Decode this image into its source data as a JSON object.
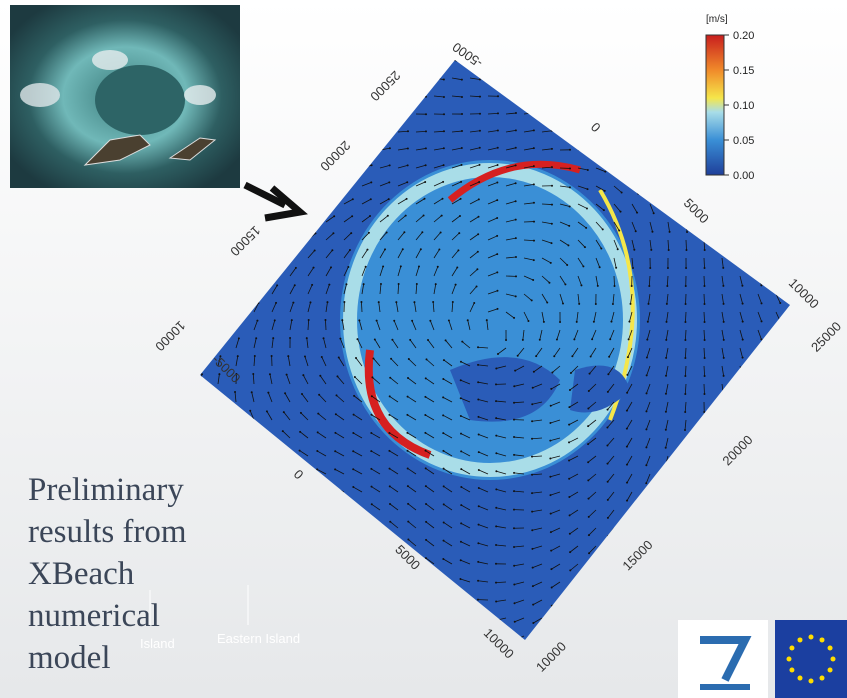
{
  "text": {
    "lines": [
      "Preliminary",
      "results from",
      "XBeach",
      "numerical",
      "model"
    ]
  },
  "figure": {
    "colorbar": {
      "unit": "[m/s]",
      "ticks": [
        "0.20",
        "0.15",
        "0.10",
        "0.05",
        "0.00"
      ]
    },
    "edge_upper_left": [
      "25000",
      "20000",
      "15000",
      "10000"
    ],
    "edge_upper_right": [
      "-5000",
      "0",
      "5000",
      "10000"
    ],
    "edge_lower_left": [
      "-5000",
      "0",
      "5000",
      "10000"
    ],
    "edge_lower_right": [
      "25000",
      "20000",
      "15000",
      "10000"
    ],
    "annotations": [
      "Island",
      "Eastern Island"
    ]
  }
}
